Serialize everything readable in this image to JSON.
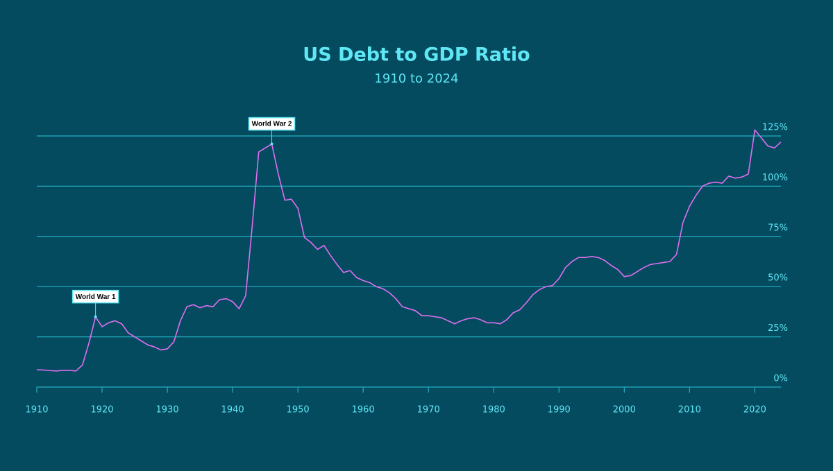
{
  "chart_data": {
    "type": "line",
    "title": "US Debt to GDP Ratio",
    "subtitle": "1910 to 2024",
    "x": [
      1910,
      1911,
      1912,
      1913,
      1914,
      1915,
      1916,
      1917,
      1918,
      1919,
      1920,
      1921,
      1922,
      1923,
      1924,
      1925,
      1926,
      1927,
      1928,
      1929,
      1930,
      1931,
      1932,
      1933,
      1934,
      1935,
      1936,
      1937,
      1938,
      1939,
      1940,
      1941,
      1942,
      1943,
      1944,
      1945,
      1946,
      1947,
      1948,
      1949,
      1950,
      1951,
      1952,
      1953,
      1954,
      1955,
      1956,
      1957,
      1958,
      1959,
      1960,
      1961,
      1962,
      1963,
      1964,
      1965,
      1966,
      1967,
      1968,
      1969,
      1970,
      1971,
      1972,
      1973,
      1974,
      1975,
      1976,
      1977,
      1978,
      1979,
      1980,
      1981,
      1982,
      1983,
      1984,
      1985,
      1986,
      1987,
      1988,
      1989,
      1990,
      1991,
      1992,
      1993,
      1994,
      1995,
      1996,
      1997,
      1998,
      1999,
      2000,
      2001,
      2002,
      2003,
      2004,
      2005,
      2006,
      2007,
      2008,
      2009,
      2010,
      2011,
      2012,
      2013,
      2014,
      2015,
      2016,
      2017,
      2018,
      2019,
      2020,
      2021,
      2022,
      2023,
      2024
    ],
    "series": [
      {
        "name": "Debt to GDP",
        "color": "#e06ff0",
        "values": [
          8.6,
          8.5,
          8.2,
          8.0,
          8.3,
          8.3,
          8.0,
          11,
          22,
          35,
          30,
          32,
          33,
          31.5,
          27,
          25,
          23,
          21,
          20,
          18.5,
          19,
          22.5,
          33,
          40,
          41,
          39.5,
          40.5,
          40,
          43.5,
          44,
          42.5,
          39,
          45.5,
          80,
          117,
          119,
          121,
          106,
          93,
          93.5,
          89,
          74.5,
          72,
          68.5,
          70.5,
          65.5,
          61,
          57,
          58,
          54.5,
          53,
          52,
          50,
          49,
          47,
          44,
          40,
          39,
          38,
          35.5,
          35.5,
          35,
          34.5,
          33,
          31.5,
          33,
          34,
          34.5,
          33.5,
          32,
          32,
          31.5,
          33.5,
          37,
          38.5,
          42,
          46,
          48.5,
          50,
          50.5,
          54,
          59.5,
          62.5,
          64.5,
          64.5,
          65,
          64.5,
          63,
          60.5,
          58.5,
          55,
          55.5,
          57.5,
          59.5,
          61,
          61.5,
          62,
          62.5,
          66,
          82,
          90,
          95.5,
          100,
          101.5,
          102,
          101.5,
          105,
          104,
          104.5,
          106,
          128,
          124,
          120,
          119,
          122
        ]
      }
    ],
    "xlim": [
      1910,
      2024
    ],
    "xticks": [
      1910,
      1920,
      1930,
      1940,
      1950,
      1960,
      1970,
      1980,
      1990,
      2000,
      2010,
      2020
    ],
    "ylim": [
      0,
      135
    ],
    "yticks": [
      {
        "value": 0,
        "label": "0%"
      },
      {
        "value": 25,
        "label": "25%"
      },
      {
        "value": 50,
        "label": "50%"
      },
      {
        "value": 75,
        "label": "75%"
      },
      {
        "value": 100,
        "label": "100%"
      },
      {
        "value": 125,
        "label": "125%"
      }
    ],
    "grid": true,
    "annotations": [
      {
        "text": "World War 1",
        "x": 1919
      },
      {
        "text": "World War 2",
        "x": 1946
      }
    ]
  }
}
